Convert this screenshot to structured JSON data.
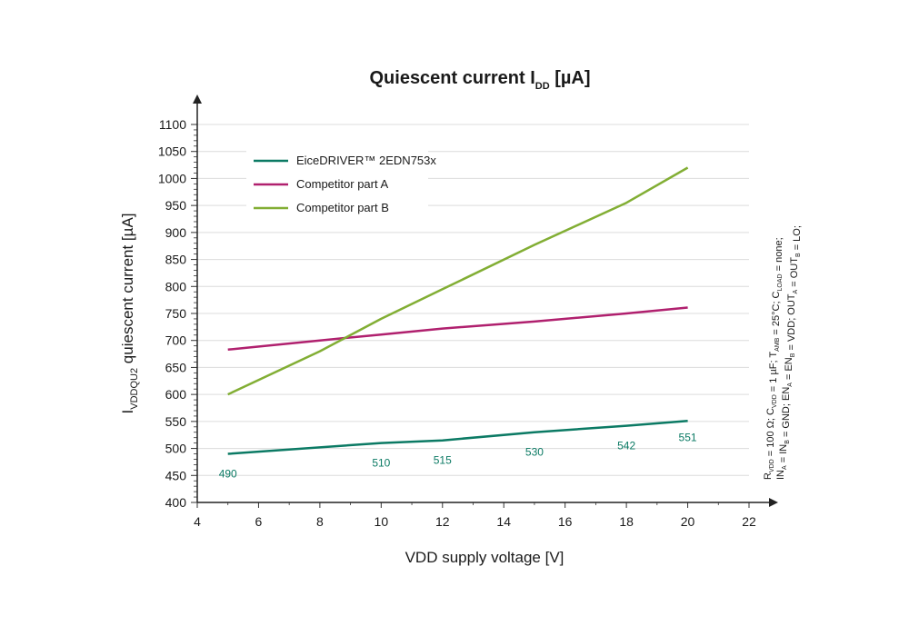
{
  "chart_data": {
    "type": "line",
    "title": "Quiescent current I",
    "title_subscript": "DD",
    "title_suffix": " [µA]",
    "xlabel": "VDD supply voltage [V]",
    "ylabel_main": "I",
    "ylabel_subscript": "VDDQU2",
    "ylabel_suffix": " quiescent current [µA]",
    "xlim": [
      4,
      22
    ],
    "ylim": [
      400,
      1100
    ],
    "x_ticks": [
      4,
      6,
      8,
      10,
      12,
      14,
      16,
      18,
      20,
      22
    ],
    "y_ticks": [
      400,
      450,
      500,
      550,
      600,
      650,
      700,
      750,
      800,
      850,
      900,
      950,
      1000,
      1050,
      1100
    ],
    "grid": "horizontal",
    "legend_position": "top-left",
    "series": [
      {
        "name": "EiceDRIVER™ 2EDN753x",
        "color": "#0b7a64",
        "x": [
          5,
          10,
          12,
          15,
          18,
          20
        ],
        "y": [
          490,
          510,
          515,
          530,
          542,
          551
        ],
        "labels": [
          "490",
          "510",
          "515",
          "530",
          "542",
          "551"
        ]
      },
      {
        "name": "Competitor part A",
        "color": "#b0206e",
        "x": [
          5,
          8,
          10,
          12,
          15,
          18,
          20
        ],
        "y": [
          683,
          700,
          711,
          722,
          735,
          750,
          761
        ]
      },
      {
        "name": "Competitor part B",
        "color": "#82ae34",
        "x": [
          5,
          8,
          10,
          12,
          15,
          18,
          20
        ],
        "y": [
          600,
          680,
          740,
          795,
          877,
          955,
          1020
        ]
      }
    ],
    "side_note_lines": [
      [
        {
          "t": "R"
        },
        {
          "t": "VDD",
          "sub": true
        },
        {
          "t": " = 100 Ω; C"
        },
        {
          "t": "VDD",
          "sub": true
        },
        {
          "t": " = 1 µF; T"
        },
        {
          "t": "AMB",
          "sub": true
        },
        {
          "t": " = 25°C; C"
        },
        {
          "t": "LOAD",
          "sub": true
        },
        {
          "t": " = none;"
        }
      ],
      [
        {
          "t": "IN"
        },
        {
          "t": "A",
          "sub": true
        },
        {
          "t": " = IN"
        },
        {
          "t": "B",
          "sub": true
        },
        {
          "t": " = GND; EN"
        },
        {
          "t": "A",
          "sub": true
        },
        {
          "t": " = EN"
        },
        {
          "t": "B",
          "sub": true
        },
        {
          "t": " = VDD; OUT"
        },
        {
          "t": "A",
          "sub": true
        },
        {
          "t": " = OUT"
        },
        {
          "t": "B",
          "sub": true
        },
        {
          "t": " = LO;"
        }
      ]
    ]
  }
}
